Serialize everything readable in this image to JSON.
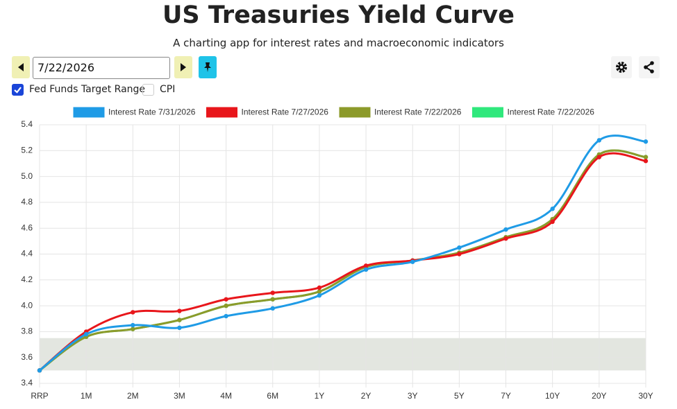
{
  "header": {
    "title": "US Treasuries Yield Curve",
    "subtitle": "A charting app for interest rates and macroeconomic indicators"
  },
  "controls": {
    "date": "7/22/2026",
    "checkboxes": [
      {
        "label": "Fed Funds Target Range",
        "checked": true
      },
      {
        "label": "CPI",
        "checked": false
      }
    ]
  },
  "chart_data": {
    "type": "line",
    "categories": [
      "RRP",
      "1M",
      "2M",
      "3M",
      "4M",
      "6M",
      "1Y",
      "2Y",
      "3Y",
      "5Y",
      "7Y",
      "10Y",
      "20Y",
      "30Y"
    ],
    "series": [
      {
        "name": "Interest Rate 7/31/2026",
        "color": "#1f9be6",
        "values": [
          3.5,
          3.78,
          3.85,
          3.83,
          3.92,
          3.98,
          4.08,
          4.28,
          4.34,
          4.45,
          4.59,
          4.75,
          5.28,
          5.27
        ]
      },
      {
        "name": "Interest Rate 7/27/2026",
        "color": "#e8161b",
        "values": [
          3.5,
          3.8,
          3.95,
          3.96,
          4.05,
          4.1,
          4.14,
          4.31,
          4.35,
          4.4,
          4.52,
          4.65,
          5.15,
          5.12
        ]
      },
      {
        "name": "Interest Rate 7/22/2026",
        "color": "#8c9a2a",
        "values": [
          3.5,
          3.76,
          3.82,
          3.89,
          4.0,
          4.05,
          4.11,
          4.3,
          4.35,
          4.41,
          4.53,
          4.67,
          5.17,
          5.15
        ]
      },
      {
        "name": "Interest Rate 7/22/2026",
        "color": "#2fe87c",
        "values": [
          3.5,
          3.76,
          3.82,
          3.89,
          4.0,
          4.05,
          4.11,
          4.3,
          4.35,
          4.41,
          4.53,
          4.67,
          5.17,
          5.15
        ]
      }
    ],
    "fed_funds_range": [
      3.5,
      3.75
    ],
    "ylim": [
      3.4,
      5.4
    ],
    "yticks": [
      3.4,
      3.6,
      3.8,
      {
        "value": 4,
        "label": "4.0"
      },
      4.2,
      4.4,
      4.6,
      4.8,
      {
        "value": 5,
        "label": "5.0"
      },
      5.2,
      5.4
    ],
    "grid": true
  }
}
